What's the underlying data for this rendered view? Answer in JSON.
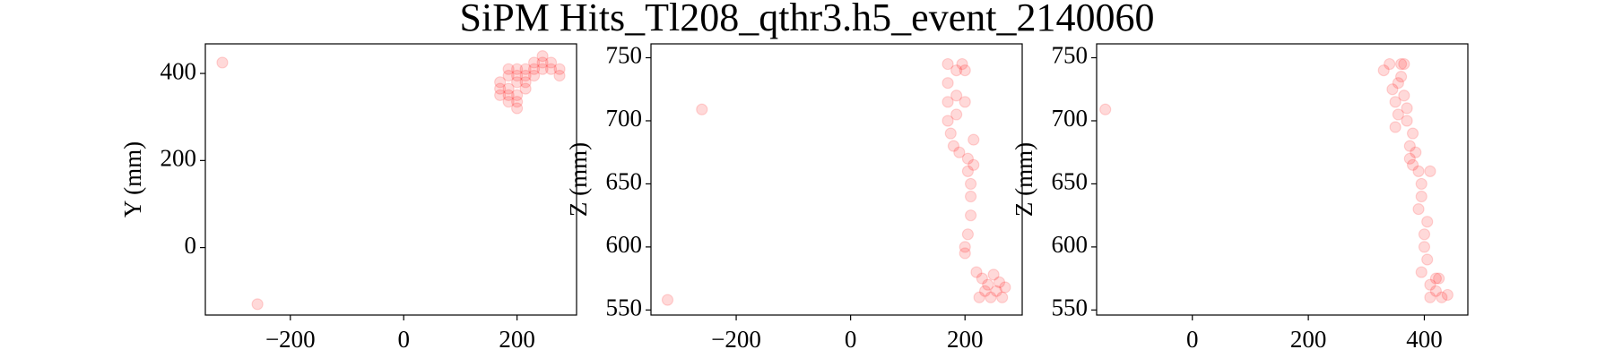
{
  "title": "SiPM Hits_Tl208_qthr3.h5_event_2140060",
  "chart_data": [
    {
      "type": "scatter",
      "ylabel": "Y (mm)",
      "color": "#ff0000",
      "opacity": 0.15,
      "xlim": [
        -350,
        305
      ],
      "ylim": [
        -155,
        468
      ],
      "xticks": [
        {
          "value": -200,
          "label": "−200"
        },
        0,
        200
      ],
      "yticks": [
        0,
        200,
        400
      ],
      "x": [
        -320,
        -258,
        170,
        170,
        170,
        185,
        185,
        185,
        185,
        200,
        200,
        200,
        200,
        200,
        215,
        215,
        215,
        215,
        230,
        230,
        230,
        245,
        245,
        245,
        260,
        260,
        275,
        275,
        185,
        200
      ],
      "y": [
        425,
        -130,
        350,
        365,
        380,
        335,
        350,
        365,
        395,
        320,
        350,
        380,
        395,
        410,
        365,
        380,
        395,
        410,
        395,
        410,
        425,
        410,
        425,
        440,
        410,
        425,
        395,
        410,
        410,
        335
      ]
    },
    {
      "type": "scatter",
      "ylabel": "Z (mm)",
      "color": "#ff0000",
      "opacity": 0.15,
      "xlim": [
        -349,
        300
      ],
      "ylim": [
        546,
        761
      ],
      "xticks": [
        {
          "value": -200,
          "label": "−200"
        },
        0,
        200
      ],
      "yticks": [
        550,
        600,
        650,
        700,
        750
      ],
      "x": [
        -320,
        -260,
        170,
        170,
        170,
        170,
        175,
        180,
        185,
        185,
        190,
        195,
        200,
        200,
        205,
        205,
        210,
        210,
        210,
        205,
        200,
        215,
        220,
        225,
        230,
        235,
        240,
        245,
        250,
        255,
        260,
        265,
        270,
        185,
        215,
        200
      ],
      "y": [
        558,
        709,
        745,
        730,
        715,
        700,
        690,
        680,
        740,
        720,
        675,
        745,
        740,
        715,
        670,
        660,
        650,
        640,
        625,
        610,
        595,
        665,
        580,
        560,
        575,
        565,
        570,
        560,
        578,
        565,
        572,
        560,
        568,
        705,
        685,
        600
      ]
    },
    {
      "type": "scatter",
      "ylabel": "Z (mm)",
      "color": "#ff0000",
      "opacity": 0.15,
      "xlim": [
        -165,
        475
      ],
      "ylim": [
        546,
        761
      ],
      "xticks": [
        0,
        200,
        400
      ],
      "yticks": [
        550,
        600,
        650,
        700,
        750
      ],
      "x": [
        -150,
        330,
        340,
        350,
        355,
        360,
        365,
        370,
        375,
        380,
        345,
        355,
        365,
        375,
        380,
        385,
        390,
        395,
        400,
        405,
        410,
        395,
        400,
        405,
        410,
        420,
        425,
        430,
        440,
        395,
        410,
        420,
        390,
        360,
        370,
        350
      ],
      "y": [
        709,
        740,
        745,
        715,
        730,
        745,
        720,
        700,
        680,
        690,
        725,
        705,
        745,
        670,
        665,
        675,
        660,
        640,
        610,
        590,
        570,
        650,
        600,
        620,
        560,
        565,
        575,
        560,
        562,
        580,
        660,
        575,
        630,
        735,
        710,
        695
      ]
    }
  ]
}
